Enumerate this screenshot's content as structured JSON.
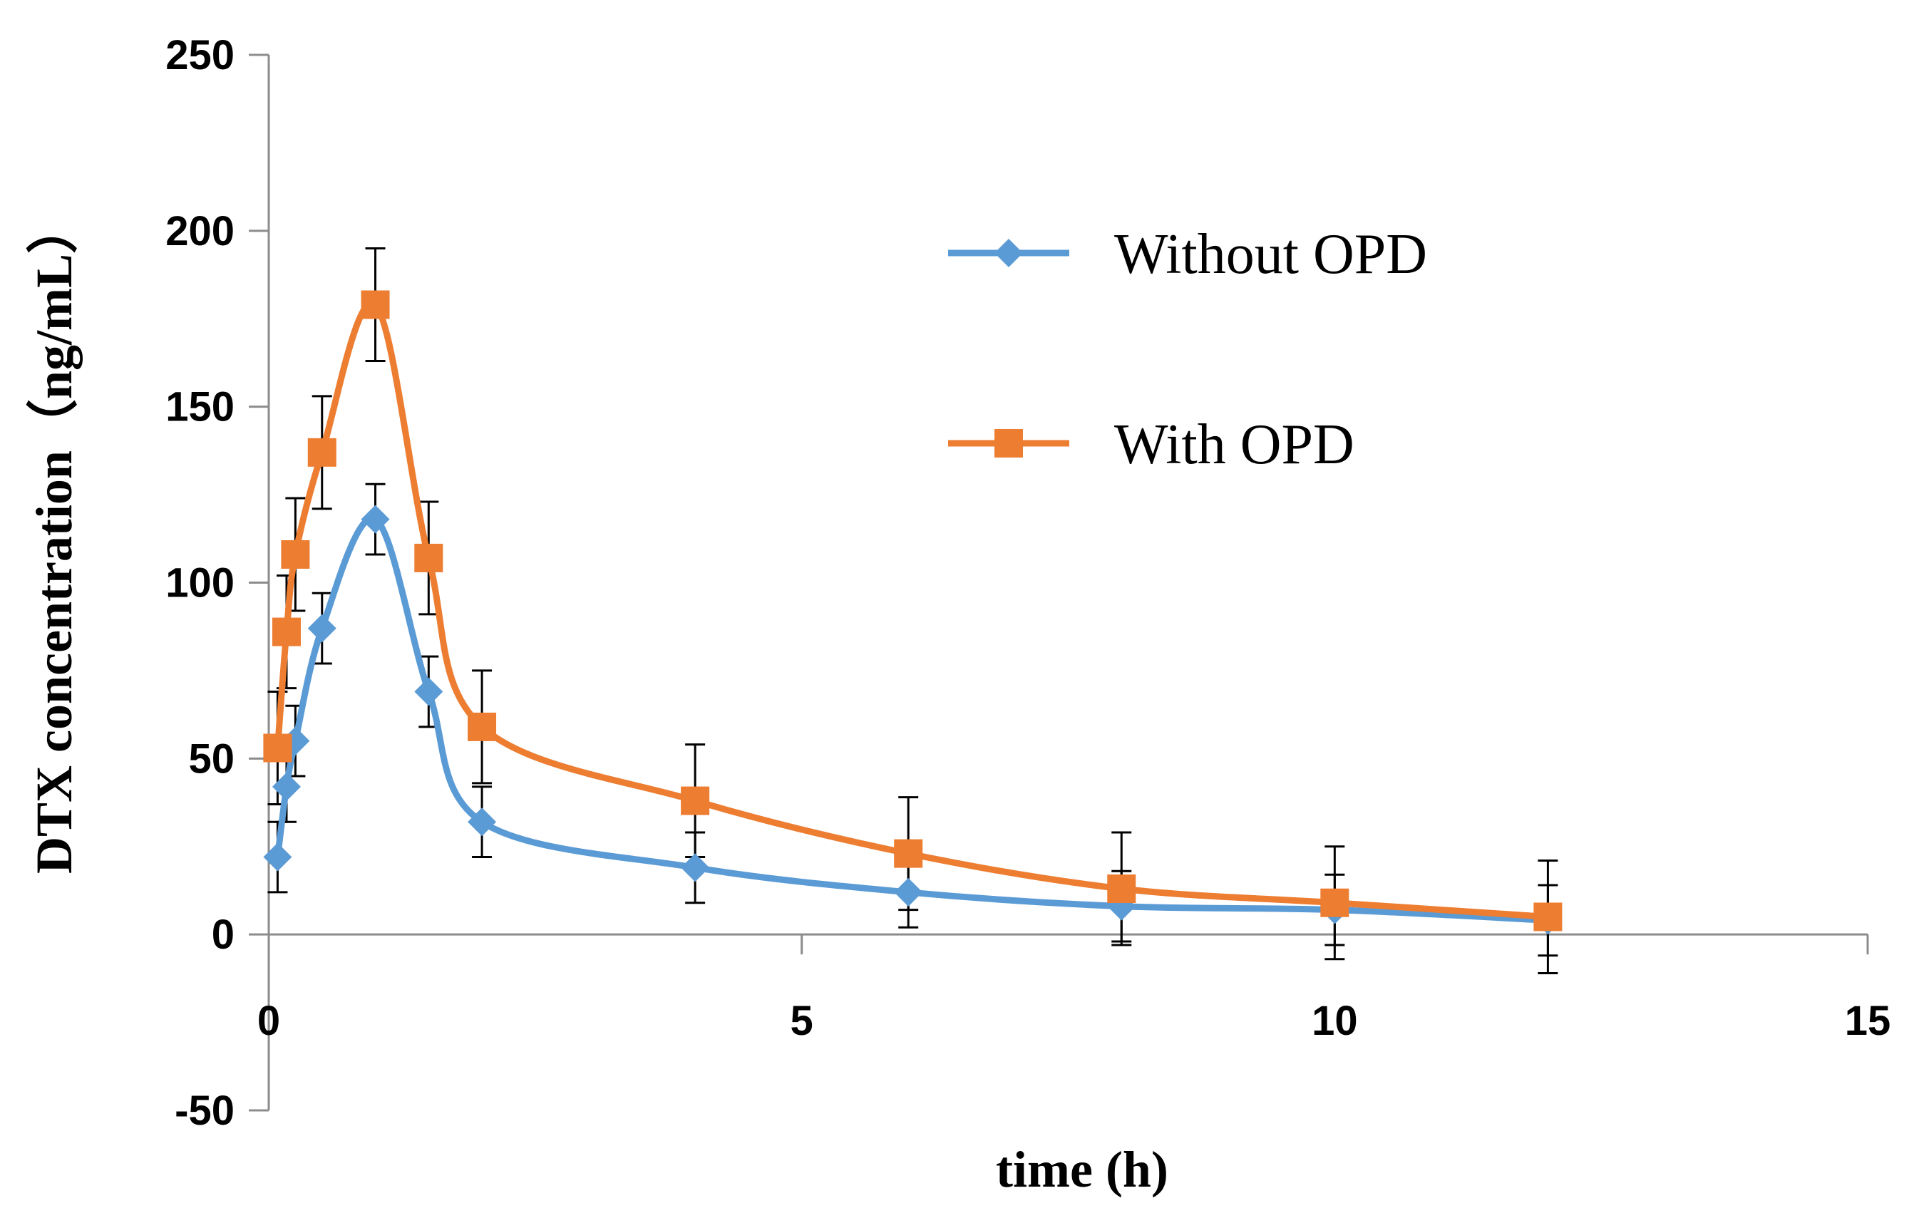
{
  "chart_data": {
    "type": "scatter",
    "title": "",
    "xlabel": "time (h)",
    "ylabel": "DTX concentration（ng/mL）",
    "xlim": [
      0,
      15
    ],
    "ylim": [
      -50,
      250
    ],
    "xticks": [
      0,
      5,
      10,
      15
    ],
    "yticks": [
      -50,
      0,
      50,
      100,
      150,
      200,
      250
    ],
    "x_tick_labels": [
      "0",
      "5",
      "10",
      "15"
    ],
    "y_tick_labels": [
      "-50",
      "0",
      "50",
      "100",
      "150",
      "200",
      "250"
    ],
    "grid": false,
    "legend_position": "upper-right",
    "series": [
      {
        "name": "Without OPD",
        "color": "#5B9BD5",
        "marker": "diamond",
        "x": [
          0.083,
          0.167,
          0.25,
          0.5,
          1,
          1.5,
          2,
          4,
          6,
          8,
          10,
          12
        ],
        "y": [
          22,
          42,
          55,
          87,
          118,
          69,
          32,
          19,
          12,
          8,
          7,
          4
        ],
        "err": [
          10,
          10,
          10,
          10,
          10,
          10,
          10,
          10,
          10,
          10,
          10,
          10
        ]
      },
      {
        "name": "With OPD",
        "color": "#ED7D31",
        "marker": "square",
        "x": [
          0.083,
          0.167,
          0.25,
          0.5,
          1,
          1.5,
          2,
          4,
          6,
          8,
          10,
          12
        ],
        "y": [
          53,
          86,
          108,
          137,
          179,
          107,
          59,
          38,
          23,
          13,
          9,
          5
        ],
        "err": [
          16,
          16,
          16,
          16,
          16,
          16,
          16,
          16,
          16,
          16,
          16,
          16
        ]
      }
    ]
  }
}
